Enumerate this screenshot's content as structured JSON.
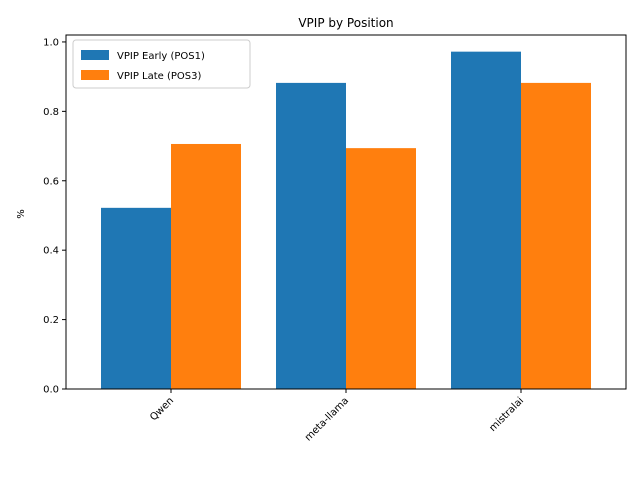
{
  "chart_data": {
    "type": "bar",
    "title": "VPIP by Position",
    "xlabel": "",
    "ylabel": "%",
    "categories": [
      "Qwen",
      "meta-llama",
      "mistralai"
    ],
    "series": [
      {
        "name": "VPIP Early (POS1)",
        "color": "#1f77b4",
        "values": [
          0.522,
          0.882,
          0.972
        ]
      },
      {
        "name": "VPIP Late (POS3)",
        "color": "#ff7f0e",
        "values": [
          0.706,
          0.694,
          0.882
        ]
      }
    ],
    "ylim": [
      0,
      1.02
    ],
    "yticks": [
      "0.0",
      "0.2",
      "0.4",
      "0.6",
      "0.8",
      "1.0"
    ],
    "ytick_values": [
      0,
      0.2,
      0.4,
      0.6,
      0.8,
      1.0
    ],
    "xtick_rotation": 45,
    "grid": false,
    "legend_position": "top-left"
  }
}
